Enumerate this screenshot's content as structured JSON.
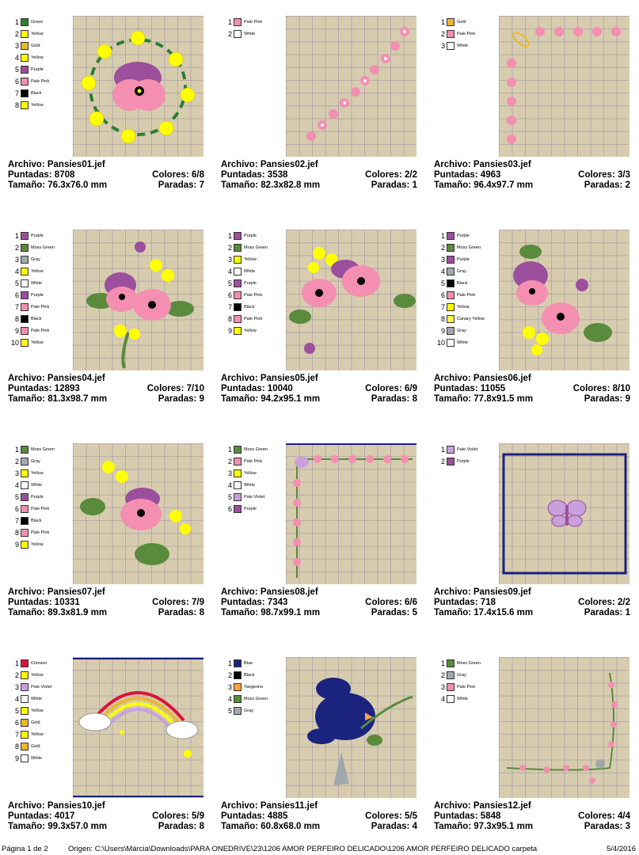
{
  "labels": {
    "file": "Archivo:",
    "stitches": "Puntadas:",
    "size": "Tamaño:",
    "colors": "Colores:",
    "stops": "Paradas:"
  },
  "designs": [
    {
      "file": "Pansies01.jef",
      "stitches": "8708",
      "size": "76.3x76.0 mm",
      "colors": "6/8",
      "stops": "7",
      "palette": [
        {
          "num": "1",
          "name": "Green",
          "hex": "#2e7d32"
        },
        {
          "num": "2",
          "name": "Yellow",
          "hex": "#ffff00"
        },
        {
          "num": "3",
          "name": "Gold",
          "hex": "#e8b830"
        },
        {
          "num": "4",
          "name": "Yellow",
          "hex": "#ffff00"
        },
        {
          "num": "5",
          "name": "Purple",
          "hex": "#9c4f9c"
        },
        {
          "num": "6",
          "name": "Pale Pink",
          "hex": "#f48fb1"
        },
        {
          "num": "7",
          "name": "Black",
          "hex": "#000000"
        },
        {
          "num": "8",
          "name": "Yellow",
          "hex": "#ffff00"
        }
      ]
    },
    {
      "file": "Pansies02.jef",
      "stitches": "3538",
      "size": "82.3x82.8 mm",
      "colors": "2/2",
      "stops": "1",
      "palette": [
        {
          "num": "1",
          "name": "Pale Pink",
          "hex": "#f48fb1"
        },
        {
          "num": "2",
          "name": "White",
          "hex": "#ffffff"
        }
      ]
    },
    {
      "file": "Pansies03.jef",
      "stitches": "4963",
      "size": "96.4x97.7 mm",
      "colors": "3/3",
      "stops": "2",
      "palette": [
        {
          "num": "1",
          "name": "Gold",
          "hex": "#e8b830"
        },
        {
          "num": "2",
          "name": "Pale Pink",
          "hex": "#f48fb1"
        },
        {
          "num": "3",
          "name": "White",
          "hex": "#ffffff"
        }
      ]
    },
    {
      "file": "Pansies04.jef",
      "stitches": "12893",
      "size": "81.3x98.7 mm",
      "colors": "7/10",
      "stops": "9",
      "palette": [
        {
          "num": "1",
          "name": "Purple",
          "hex": "#9c4f9c"
        },
        {
          "num": "2",
          "name": "Moss Green",
          "hex": "#5a8a3c"
        },
        {
          "num": "3",
          "name": "Gray",
          "hex": "#a0a8ac"
        },
        {
          "num": "4",
          "name": "Yellow",
          "hex": "#ffff00"
        },
        {
          "num": "5",
          "name": "White",
          "hex": "#ffffff"
        },
        {
          "num": "6",
          "name": "Purple",
          "hex": "#9c4f9c"
        },
        {
          "num": "7",
          "name": "Pale Pink",
          "hex": "#f48fb1"
        },
        {
          "num": "8",
          "name": "Black",
          "hex": "#000000"
        },
        {
          "num": "9",
          "name": "Pale Pink",
          "hex": "#f48fb1"
        },
        {
          "num": "10",
          "name": "Yellow",
          "hex": "#ffff00"
        }
      ]
    },
    {
      "file": "Pansies05.jef",
      "stitches": "10040",
      "size": "94.2x95.1 mm",
      "colors": "6/9",
      "stops": "8",
      "palette": [
        {
          "num": "1",
          "name": "Purple",
          "hex": "#9c4f9c"
        },
        {
          "num": "2",
          "name": "Moss Green",
          "hex": "#5a8a3c"
        },
        {
          "num": "3",
          "name": "Yellow",
          "hex": "#ffff00"
        },
        {
          "num": "4",
          "name": "White",
          "hex": "#ffffff"
        },
        {
          "num": "5",
          "name": "Purple",
          "hex": "#9c4f9c"
        },
        {
          "num": "6",
          "name": "Pale Pink",
          "hex": "#f48fb1"
        },
        {
          "num": "7",
          "name": "Black",
          "hex": "#000000"
        },
        {
          "num": "8",
          "name": "Pale Pink",
          "hex": "#f48fb1"
        },
        {
          "num": "9",
          "name": "Yellow",
          "hex": "#ffff00"
        }
      ]
    },
    {
      "file": "Pansies06.jef",
      "stitches": "11055",
      "size": "77.8x91.5 mm",
      "colors": "8/10",
      "stops": "9",
      "palette": [
        {
          "num": "1",
          "name": "Purple",
          "hex": "#9c4f9c"
        },
        {
          "num": "2",
          "name": "Moss Green",
          "hex": "#5a8a3c"
        },
        {
          "num": "3",
          "name": "Purple",
          "hex": "#9c4f9c"
        },
        {
          "num": "4",
          "name": "Gray",
          "hex": "#a0a8ac"
        },
        {
          "num": "5",
          "name": "Black",
          "hex": "#000000"
        },
        {
          "num": "6",
          "name": "Pale Pink",
          "hex": "#f48fb1"
        },
        {
          "num": "7",
          "name": "Yellow",
          "hex": "#ffff00"
        },
        {
          "num": "8",
          "name": "Canary Yellow",
          "hex": "#fff44f"
        },
        {
          "num": "9",
          "name": "Gray",
          "hex": "#a0a8ac"
        },
        {
          "num": "10",
          "name": "White",
          "hex": "#ffffff"
        }
      ]
    },
    {
      "file": "Pansies07.jef",
      "stitches": "10331",
      "size": "89.3x81.9 mm",
      "colors": "7/9",
      "stops": "8",
      "palette": [
        {
          "num": "1",
          "name": "Moss Green",
          "hex": "#5a8a3c"
        },
        {
          "num": "2",
          "name": "Gray",
          "hex": "#a0a8ac"
        },
        {
          "num": "3",
          "name": "Yellow",
          "hex": "#ffff00"
        },
        {
          "num": "4",
          "name": "White",
          "hex": "#ffffff"
        },
        {
          "num": "5",
          "name": "Purple",
          "hex": "#9c4f9c"
        },
        {
          "num": "6",
          "name": "Pale Pink",
          "hex": "#f48fb1"
        },
        {
          "num": "7",
          "name": "Black",
          "hex": "#000000"
        },
        {
          "num": "8",
          "name": "Pale Pink",
          "hex": "#f48fb1"
        },
        {
          "num": "9",
          "name": "Yellow",
          "hex": "#ffff00"
        }
      ]
    },
    {
      "file": "Pansies08.jef",
      "stitches": "7343",
      "size": "98.7x99.1 mm",
      "colors": "6/6",
      "stops": "5",
      "palette": [
        {
          "num": "1",
          "name": "Moss Green",
          "hex": "#5a8a3c"
        },
        {
          "num": "2",
          "name": "Pale Pink",
          "hex": "#f48fb1"
        },
        {
          "num": "3",
          "name": "Yellow",
          "hex": "#ffff00"
        },
        {
          "num": "4",
          "name": "White",
          "hex": "#ffffff"
        },
        {
          "num": "5",
          "name": "Pale Violet",
          "hex": "#c9a0dc"
        },
        {
          "num": "6",
          "name": "Purple",
          "hex": "#9c4f9c"
        }
      ]
    },
    {
      "file": "Pansies09.jef",
      "stitches": "718",
      "size": "17.4x15.6 mm",
      "colors": "2/2",
      "stops": "1",
      "palette": [
        {
          "num": "1",
          "name": "Pale Violet",
          "hex": "#c9a0dc"
        },
        {
          "num": "2",
          "name": "Purple",
          "hex": "#9c4f9c"
        }
      ]
    },
    {
      "file": "Pansies10.jef",
      "stitches": "4017",
      "size": "99.3x57.0 mm",
      "colors": "5/9",
      "stops": "8",
      "palette": [
        {
          "num": "1",
          "name": "Crimson",
          "hex": "#dc143c"
        },
        {
          "num": "2",
          "name": "Yellow",
          "hex": "#ffff00"
        },
        {
          "num": "3",
          "name": "Pale Violet",
          "hex": "#c9a0dc"
        },
        {
          "num": "4",
          "name": "White",
          "hex": "#ffffff"
        },
        {
          "num": "5",
          "name": "Yellow",
          "hex": "#ffff00"
        },
        {
          "num": "6",
          "name": "Gold",
          "hex": "#e8b830"
        },
        {
          "num": "7",
          "name": "Yellow",
          "hex": "#ffff00"
        },
        {
          "num": "8",
          "name": "Gold",
          "hex": "#e8b830"
        },
        {
          "num": "9",
          "name": "White",
          "hex": "#ffffff"
        }
      ]
    },
    {
      "file": "Pansies11.jef",
      "stitches": "4885",
      "size": "60.8x68.0 mm",
      "colors": "5/5",
      "stops": "4",
      "palette": [
        {
          "num": "1",
          "name": "Blue",
          "hex": "#1a237e"
        },
        {
          "num": "2",
          "name": "Black",
          "hex": "#000000"
        },
        {
          "num": "3",
          "name": "Tangerine",
          "hex": "#ffa040"
        },
        {
          "num": "4",
          "name": "Moss Green",
          "hex": "#5a8a3c"
        },
        {
          "num": "5",
          "name": "Gray",
          "hex": "#a0a8ac"
        }
      ]
    },
    {
      "file": "Pansies12.jef",
      "stitches": "5848",
      "size": "97.3x95.1 mm",
      "colors": "4/4",
      "stops": "3",
      "palette": [
        {
          "num": "1",
          "name": "Moss Green",
          "hex": "#5a8a3c"
        },
        {
          "num": "2",
          "name": "Gray",
          "hex": "#a0a8ac"
        },
        {
          "num": "3",
          "name": "Pale Pink",
          "hex": "#f48fb1"
        },
        {
          "num": "4",
          "name": "White",
          "hex": "#ffffff"
        }
      ]
    }
  ],
  "footer": {
    "page": "Página 1 de 2",
    "origin": "Origen: C:\\Users\\Márcia\\Downloads\\PARA ONEDRIVE\\23\\1206 AMOR PERFEIRO DELICADO\\1206 AMOR PERFEIRO DELICADO carpeta",
    "date": "5/4/2016"
  }
}
